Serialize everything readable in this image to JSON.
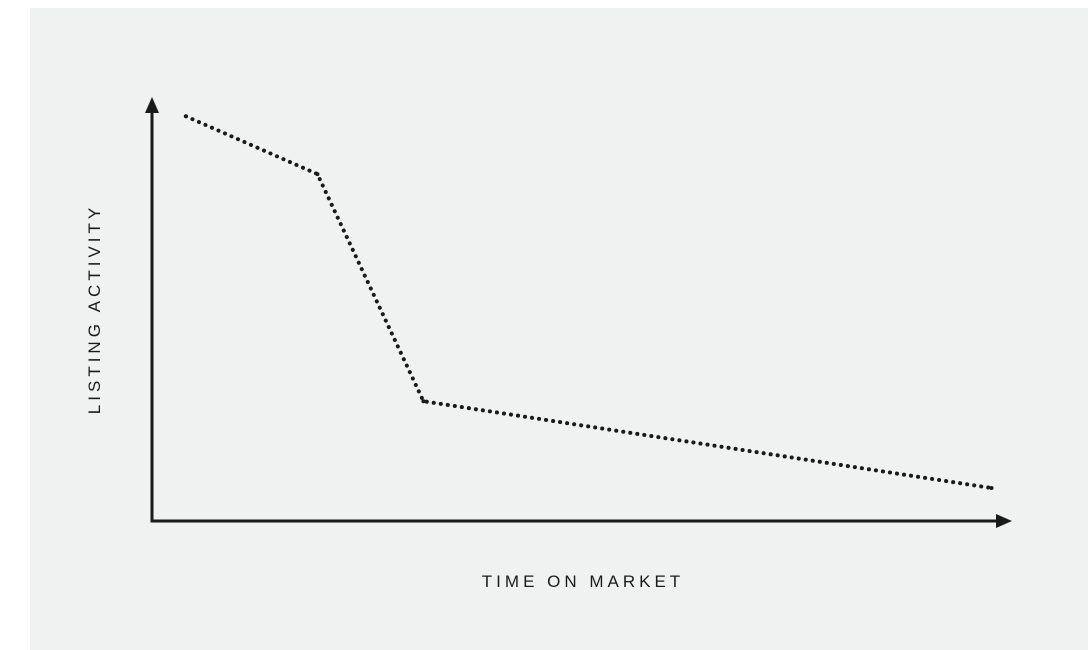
{
  "chart_data": {
    "type": "line",
    "title": "",
    "xlabel": "TIME ON MARKET",
    "ylabel": "LISTING ACTIVITY",
    "grid": false,
    "x_ticks": false,
    "y_ticks": false,
    "xlim": [
      0,
      100
    ],
    "ylim": [
      0,
      100
    ],
    "series": [
      {
        "line_style": "dotted",
        "color": "#1a1a1a",
        "points": [
          {
            "x": 4,
            "y": 98
          },
          {
            "x": 19.5,
            "y": 84
          },
          {
            "x": 32,
            "y": 29
          },
          {
            "x": 99,
            "y": 8
          }
        ]
      }
    ]
  },
  "colors": {
    "background": "#f0f1f1",
    "axis": "#1a1a1a",
    "line": "#1a1a1a"
  }
}
